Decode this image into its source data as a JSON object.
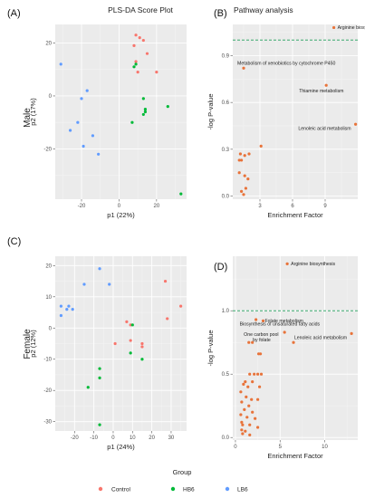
{
  "figure": {
    "row_labels": [
      "Male",
      "Female"
    ],
    "legend": {
      "title": "Group",
      "entries": [
        {
          "label": "Control",
          "color": "#F8766D"
        },
        {
          "label": "HB6",
          "color": "#00BA38"
        },
        {
          "label": "LB6",
          "color": "#619CFF"
        }
      ]
    }
  },
  "chart_data": [
    {
      "panel": "(A)",
      "type": "scatter",
      "title": "PLS-DA Score Plot",
      "xlabel": "p1 (22%)",
      "ylabel": "p2 (17%)",
      "xlim": [
        -34,
        36
      ],
      "ylim": [
        -39,
        27
      ],
      "xticks": [
        -20,
        0,
        20
      ],
      "yticks": [
        -20,
        0,
        20
      ],
      "grid": true,
      "series": [
        {
          "name": "Control",
          "color": "#F8766D",
          "points": [
            [
              9,
              23
            ],
            [
              11,
              22
            ],
            [
              13,
              21
            ],
            [
              8,
              19
            ],
            [
              9,
              13
            ],
            [
              15,
              16
            ],
            [
              20,
              9
            ],
            [
              10,
              9
            ]
          ]
        },
        {
          "name": "HB6",
          "color": "#00BA38",
          "points": [
            [
              8,
              11
            ],
            [
              9,
              12
            ],
            [
              13,
              -1
            ],
            [
              14,
              -5
            ],
            [
              14,
              -6
            ],
            [
              13,
              -7
            ],
            [
              26,
              -4
            ],
            [
              7,
              -10
            ],
            [
              33,
              -37
            ]
          ]
        },
        {
          "name": "LB6",
          "color": "#619CFF",
          "points": [
            [
              -31,
              12
            ],
            [
              -17,
              2
            ],
            [
              -20,
              -1
            ],
            [
              -22,
              -10
            ],
            [
              -26,
              -13
            ],
            [
              -19,
              -19
            ],
            [
              -14,
              -15
            ],
            [
              -11,
              -22
            ]
          ]
        }
      ]
    },
    {
      "panel": "(B)",
      "type": "scatter",
      "title": "Pathway analysis",
      "xlabel": "Enrichment Factor",
      "ylabel": "-log P-value",
      "xlim": [
        0.5,
        12
      ],
      "ylim": [
        -0.02,
        1.1
      ],
      "xticks": [
        3,
        6,
        9
      ],
      "yticks": [
        0.0,
        0.3,
        0.6,
        0.9
      ],
      "threshold": 1.0,
      "grid": true,
      "color": "#E8733A",
      "points": [
        [
          9.8,
          1.08
        ],
        [
          1.5,
          0.82
        ],
        [
          9.1,
          0.71
        ],
        [
          11.8,
          0.46
        ],
        [
          3.1,
          0.32
        ],
        [
          1.2,
          0.27
        ],
        [
          1.6,
          0.26
        ],
        [
          2.0,
          0.27
        ],
        [
          1.1,
          0.23
        ],
        [
          1.3,
          0.23
        ],
        [
          1.1,
          0.15
        ],
        [
          1.6,
          0.13
        ],
        [
          1.9,
          0.11
        ],
        [
          1.3,
          0.03
        ],
        [
          1.7,
          0.05
        ],
        [
          1.5,
          0.01
        ]
      ],
      "annotations": [
        {
          "text": "Arginine biosynthesis",
          "x": 9.8,
          "y": 1.08
        },
        {
          "text": "Metabolism of xenobiotics by cytochrome P450",
          "x": 1.5,
          "y": 0.82
        },
        {
          "text": "Thiamine metabolism",
          "x": 9.1,
          "y": 0.71
        },
        {
          "text": "Lenoleic acid metabolism",
          "x": 11.8,
          "y": 0.46
        }
      ]
    },
    {
      "panel": "(C)",
      "type": "scatter",
      "title": "",
      "xlabel": "p1 (24%)",
      "ylabel": "p2 (12%)",
      "xlim": [
        -30,
        38
      ],
      "ylim": [
        -33,
        23
      ],
      "xticks": [
        -20,
        -10,
        0,
        10,
        20,
        30
      ],
      "yticks": [
        -30,
        -20,
        -10,
        0,
        10,
        20
      ],
      "grid": true,
      "series": [
        {
          "name": "Control",
          "color": "#F8766D",
          "points": [
            [
              27,
              15
            ],
            [
              35,
              7
            ],
            [
              28,
              3
            ],
            [
              7,
              2
            ],
            [
              9,
              1
            ],
            [
              15,
              -5
            ],
            [
              15,
              -6
            ],
            [
              1,
              -5
            ],
            [
              9,
              -4
            ]
          ]
        },
        {
          "name": "HB6",
          "color": "#00BA38",
          "points": [
            [
              10,
              1
            ],
            [
              9,
              -8
            ],
            [
              15,
              -10
            ],
            [
              -7,
              -13
            ],
            [
              -7,
              -16
            ],
            [
              -13,
              -19
            ],
            [
              -7,
              -31
            ]
          ]
        },
        {
          "name": "LB6",
          "color": "#619CFF",
          "points": [
            [
              -7,
              19
            ],
            [
              -15,
              14
            ],
            [
              -2,
              14
            ],
            [
              -27,
              7
            ],
            [
              -23,
              7
            ],
            [
              -21,
              6
            ],
            [
              -24,
              6
            ],
            [
              -27,
              4
            ]
          ]
        }
      ]
    },
    {
      "panel": "(D)",
      "type": "scatter",
      "title": "",
      "xlabel": "Enrichment Factor",
      "ylabel": "-log P-value",
      "xlim": [
        -0.3,
        13.7
      ],
      "ylim": [
        -0.02,
        1.43
      ],
      "xticks": [
        0,
        5,
        10
      ],
      "yticks": [
        0.0,
        0.5,
        1.0
      ],
      "threshold": 1.0,
      "grid": true,
      "color": "#E8733A",
      "points": [
        [
          5.8,
          1.37
        ],
        [
          2.3,
          0.93
        ],
        [
          3.1,
          0.92
        ],
        [
          5.5,
          0.83
        ],
        [
          13.0,
          0.82
        ],
        [
          6.5,
          0.75
        ],
        [
          1.5,
          0.75
        ],
        [
          1.9,
          0.75
        ],
        [
          2.6,
          0.66
        ],
        [
          2.8,
          0.66
        ],
        [
          2.5,
          0.5
        ],
        [
          2.9,
          0.5
        ],
        [
          1.6,
          0.5
        ],
        [
          2.1,
          0.5
        ],
        [
          1.1,
          0.44
        ],
        [
          1.9,
          0.44
        ],
        [
          0.9,
          0.42
        ],
        [
          1.4,
          0.4
        ],
        [
          2.7,
          0.4
        ],
        [
          0.6,
          0.36
        ],
        [
          1.2,
          0.32
        ],
        [
          1.8,
          0.3
        ],
        [
          2.5,
          0.3
        ],
        [
          0.7,
          0.28
        ],
        [
          1.5,
          0.25
        ],
        [
          1.0,
          0.22
        ],
        [
          1.9,
          0.2
        ],
        [
          0.6,
          0.18
        ],
        [
          1.3,
          0.16
        ],
        [
          2.2,
          0.15
        ],
        [
          0.7,
          0.12
        ],
        [
          0.8,
          0.1
        ],
        [
          1.6,
          0.1
        ],
        [
          0.7,
          0.06
        ],
        [
          2.5,
          0.08
        ],
        [
          1.1,
          0.05
        ],
        [
          0.8,
          0.03
        ],
        [
          1.6,
          0.02
        ]
      ],
      "annotations": [
        {
          "text": "Arginine biosynthesis",
          "x": 5.8,
          "y": 1.37
        },
        {
          "text": "Folate metabolism",
          "x": 3.1,
          "y": 0.92
        },
        {
          "text": "Biosynthesis of unsaturated fatty acids",
          "x": 2.3,
          "y": 0.93
        },
        {
          "text": "One carbon pool",
          "x": 5.5,
          "y": 0.83
        },
        {
          "text": "by folate",
          "x": 5.5,
          "y": 0.83
        },
        {
          "text": "Lenoleic acid metabolism",
          "x": 13.0,
          "y": 0.82
        }
      ]
    }
  ]
}
